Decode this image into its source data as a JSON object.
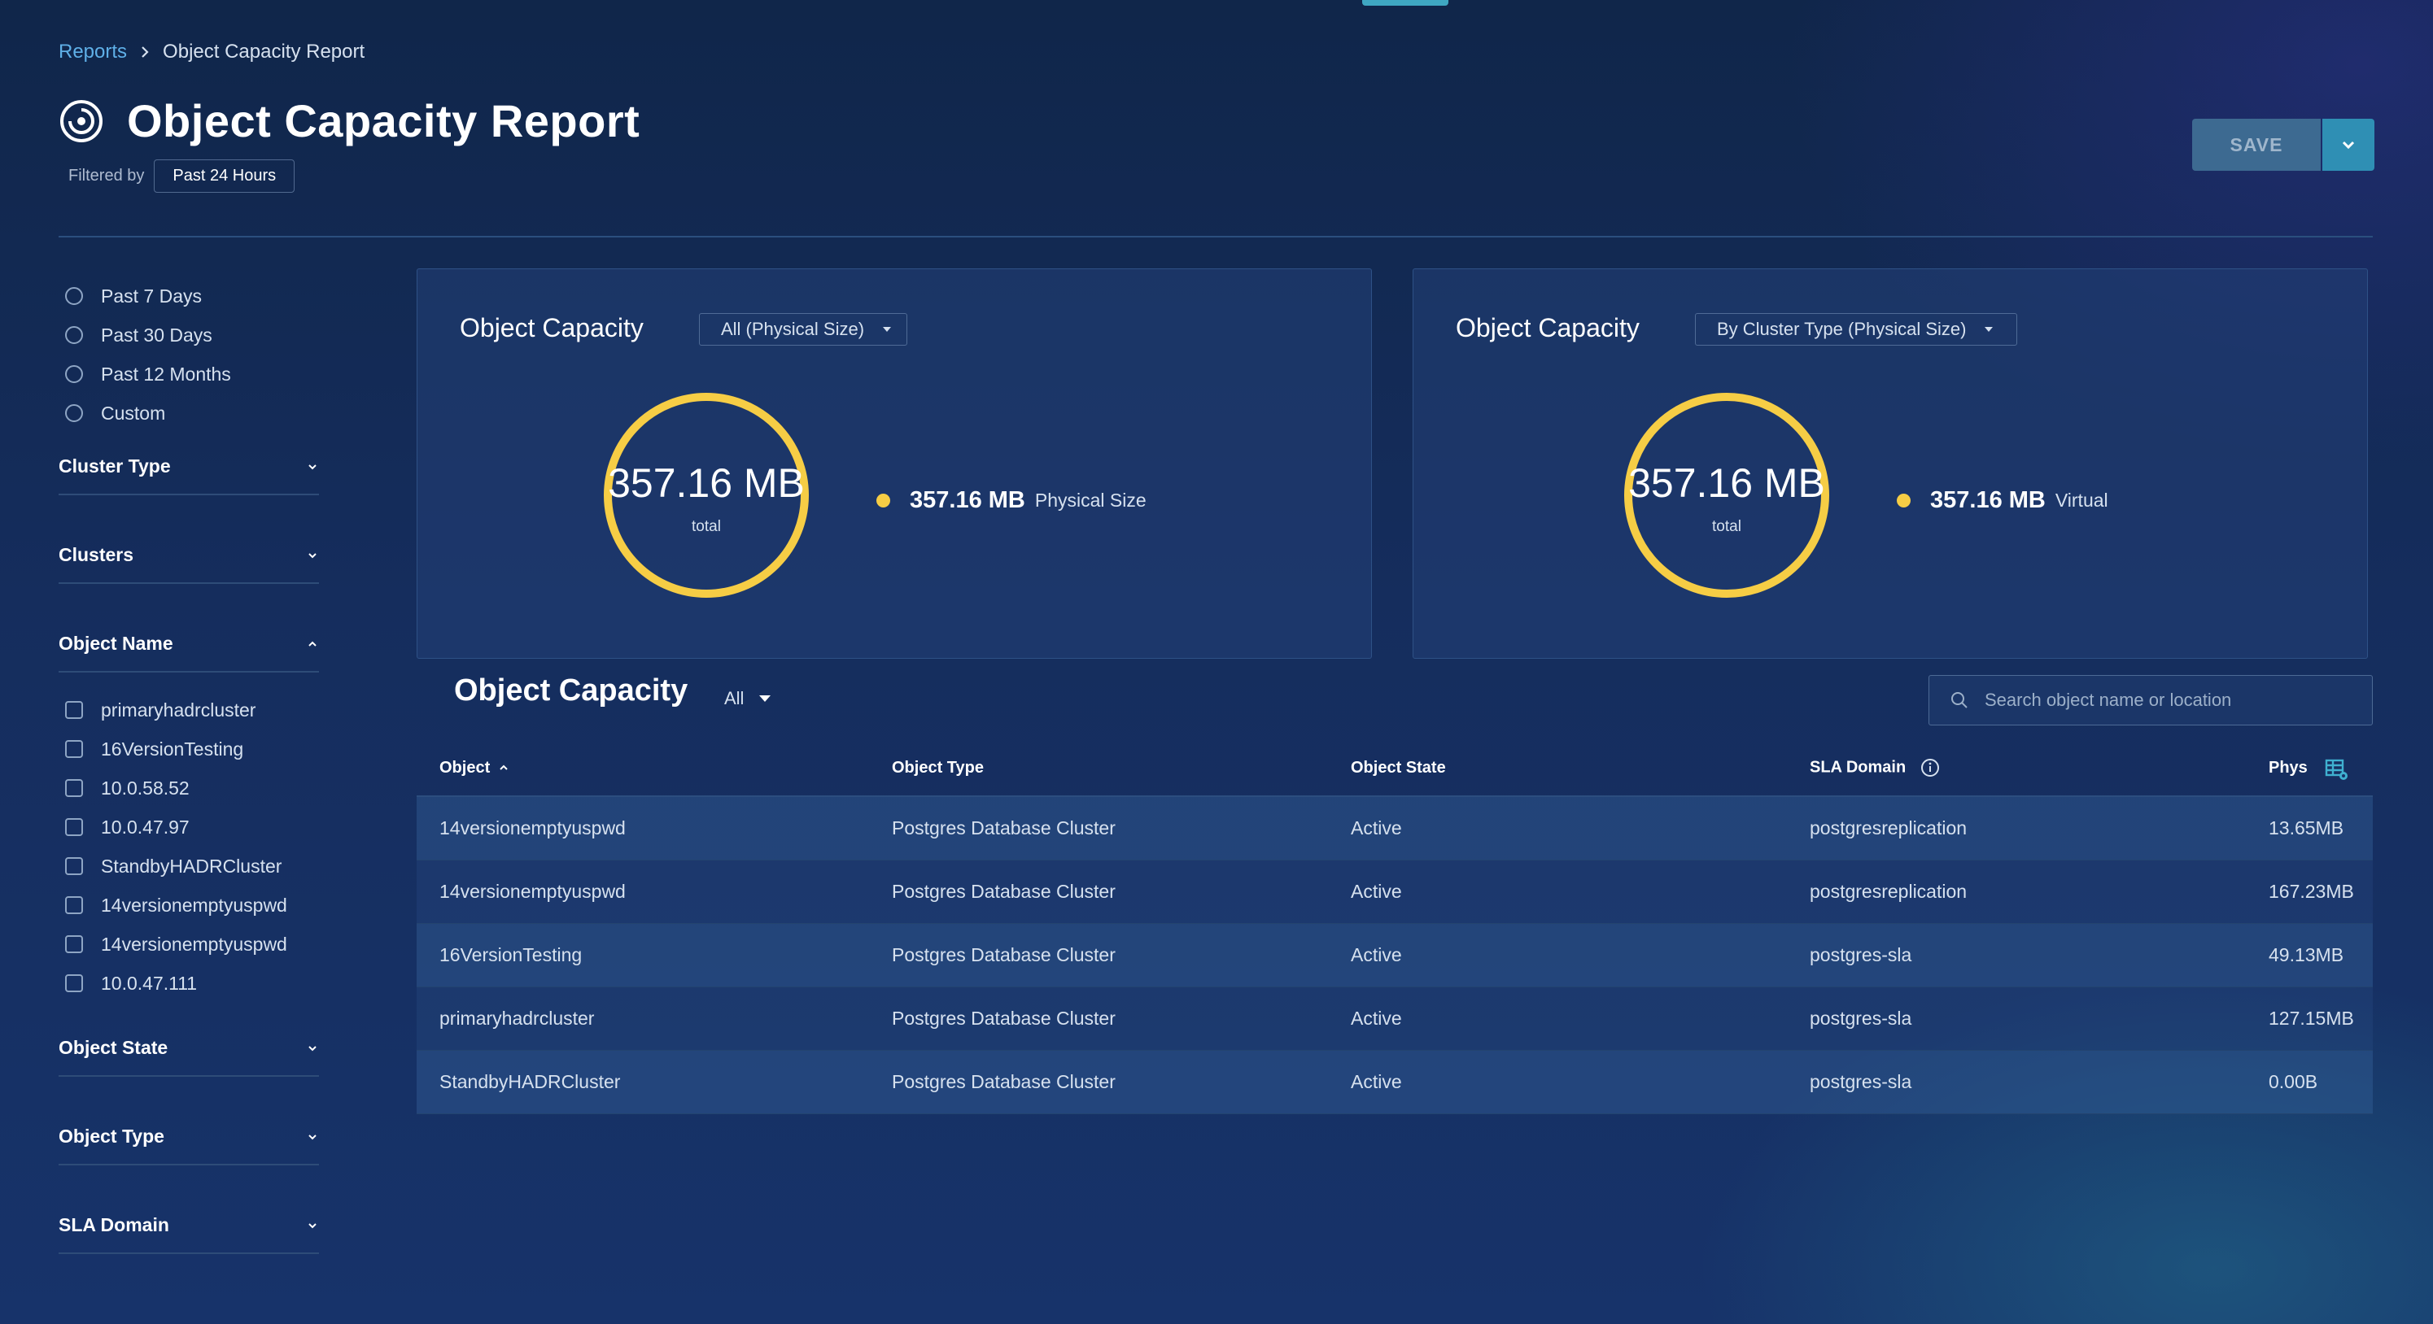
{
  "breadcrumb": {
    "parent": "Reports",
    "current": "Object Capacity Report"
  },
  "page": {
    "title": "Object Capacity Report",
    "filtered_by_label": "Filtered by",
    "filter_chip": "Past 24 Hours"
  },
  "toolbar": {
    "save_label": "SAVE"
  },
  "sidebar": {
    "time_options": [
      "Past 7 Days",
      "Past 30 Days",
      "Past 12 Months",
      "Custom"
    ],
    "facets": {
      "cluster_type": "Cluster Type",
      "clusters": "Clusters",
      "object_name": "Object Name",
      "object_state": "Object State",
      "object_type": "Object Type",
      "sla_domain": "SLA Domain"
    },
    "object_names": [
      "primaryhadrcluster",
      "16VersionTesting",
      "10.0.58.52",
      "10.0.47.97",
      "StandbyHADRCluster",
      "14versionemptyuspwd",
      "14versionemptyuspwd",
      "10.0.47.111"
    ]
  },
  "cards": [
    {
      "title": "Object Capacity",
      "select": "All (Physical Size)",
      "total": "357.16 MB",
      "total_label": "total",
      "legend_value": "357.16 MB",
      "legend_label": "Physical Size",
      "color": "#f6cd45"
    },
    {
      "title": "Object Capacity",
      "select": "By Cluster Type (Physical Size)",
      "total": "357.16 MB",
      "total_label": "total",
      "legend_value": "357.16 MB",
      "legend_label": "Virtual",
      "color": "#f6cd45"
    }
  ],
  "table": {
    "title": "Object Capacity",
    "filter": "All",
    "search_placeholder": "Search object name or location",
    "columns": [
      "Object",
      "Object Type",
      "Object State",
      "SLA Domain",
      "Phys"
    ],
    "rows": [
      [
        "14versionemptyuspwd",
        "Postgres Database Cluster",
        "Active",
        "postgresreplication",
        "13.65MB"
      ],
      [
        "14versionemptyuspwd",
        "Postgres Database Cluster",
        "Active",
        "postgresreplication",
        "167.23MB"
      ],
      [
        "16VersionTesting",
        "Postgres Database Cluster",
        "Active",
        "postgres-sla",
        "49.13MB"
      ],
      [
        "primaryhadrcluster",
        "Postgres Database Cluster",
        "Active",
        "postgres-sla",
        "127.15MB"
      ],
      [
        "StandbyHADRCluster",
        "Postgres Database Cluster",
        "Active",
        "postgres-sla",
        "0.00B"
      ]
    ]
  }
}
